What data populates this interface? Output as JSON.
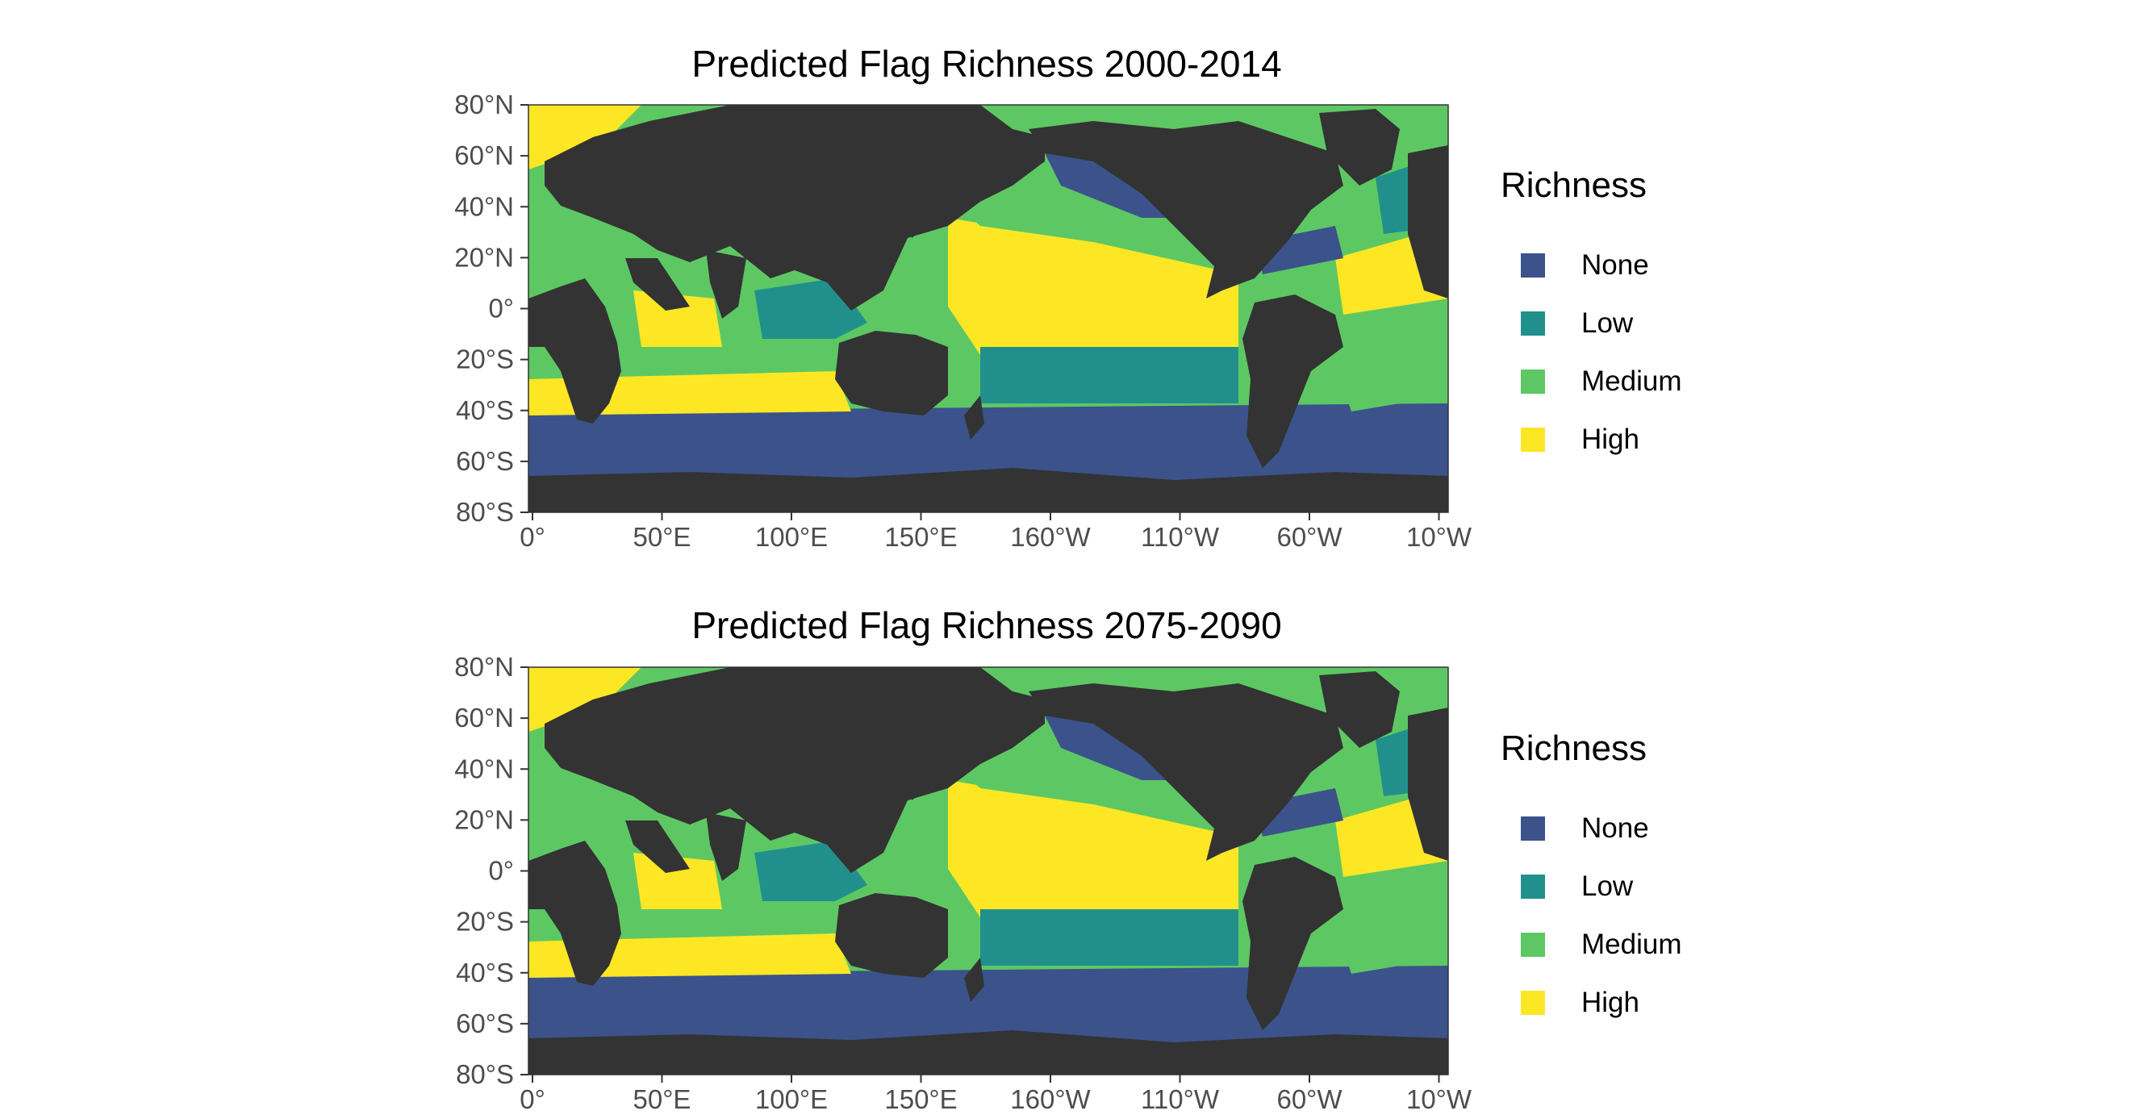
{
  "figure": {
    "panels": [
      {
        "title": "Predicted Flag Richness 2000-2014",
        "legend_title": "Richness",
        "legend_items": [
          {
            "label": "None",
            "color": "#3b528b"
          },
          {
            "label": "Low",
            "color": "#21908d"
          },
          {
            "label": "Medium",
            "color": "#5dc863"
          },
          {
            "label": "High",
            "color": "#fde725"
          }
        ]
      },
      {
        "title": "Predicted Flag Richness 2075-2090",
        "legend_title": "Richness",
        "legend_items": [
          {
            "label": "None",
            "color": "#3b528b"
          },
          {
            "label": "Low",
            "color": "#21908d"
          },
          {
            "label": "Medium",
            "color": "#5dc863"
          },
          {
            "label": "High",
            "color": "#fde725"
          }
        ]
      }
    ],
    "y_ticks": [
      "80°N",
      "60°N",
      "40°N",
      "20°N",
      "0°",
      "20°S",
      "40°S",
      "60°S",
      "80°S"
    ],
    "x_ticks": [
      "0°",
      "50°E",
      "100°E",
      "150°E",
      "160°W",
      "110°W",
      "60°W",
      "10°W"
    ],
    "colors": {
      "land": "#333333",
      "none": "#3b528b",
      "low": "#21908d",
      "medium": "#5dc863",
      "high": "#fde725"
    }
  }
}
